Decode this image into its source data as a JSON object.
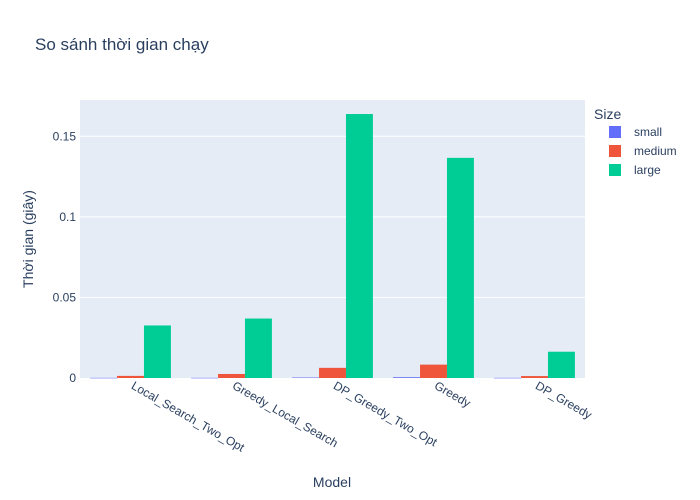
{
  "chart_data": {
    "type": "bar",
    "title": "So sánh thời gian chạy",
    "xlabel": "Model",
    "ylabel": "Thời gian (giây)",
    "categories": [
      "Local_Search_Two_Opt",
      "Greedy_Local_Search",
      "DP_Greedy_Two_Opt",
      "Greedy",
      "DP_Greedy"
    ],
    "series": [
      {
        "name": "small",
        "color": "#636efa",
        "values": [
          0.0001,
          0.0001,
          0.0003,
          0.0005,
          0.0001
        ]
      },
      {
        "name": "medium",
        "color": "#ef553b",
        "values": [
          0.0013,
          0.0025,
          0.0063,
          0.0083,
          0.0012
        ]
      },
      {
        "name": "large",
        "color": "#00cc96",
        "values": [
          0.0326,
          0.0369,
          0.1638,
          0.1366,
          0.0163
        ]
      }
    ],
    "ylim": [
      0,
      0.1725
    ],
    "yticks": [
      0,
      0.05,
      0.1,
      0.15
    ],
    "ytick_labels": [
      "0",
      "0.05",
      "0.1",
      "0.15"
    ],
    "legend": {
      "title": "Size",
      "placement": "top-right"
    },
    "grid": true,
    "background": "#e5ecf6"
  }
}
